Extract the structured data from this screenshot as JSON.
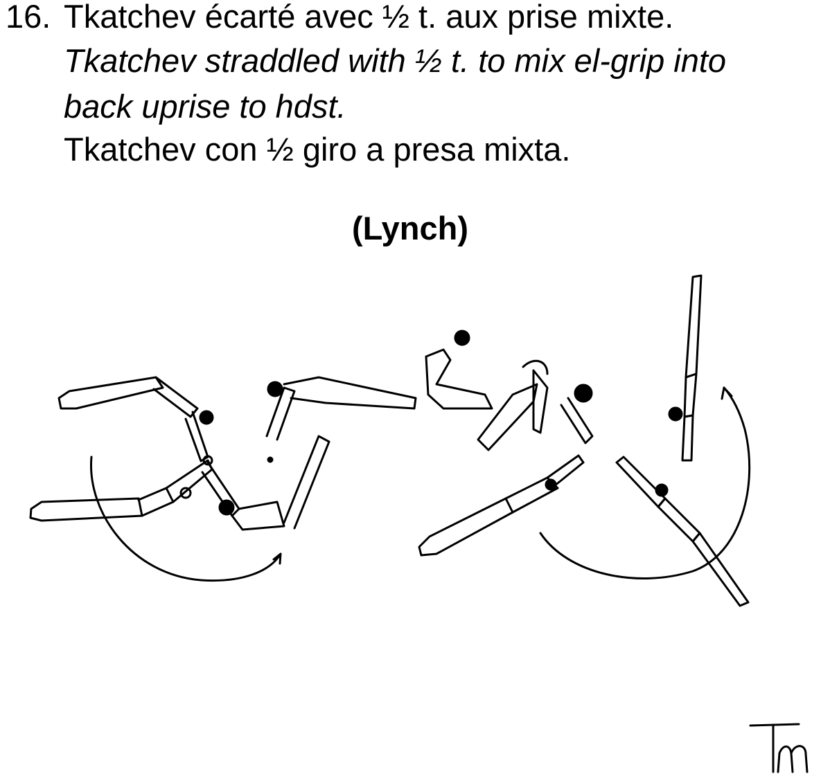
{
  "element": {
    "number": "16.",
    "french": "Tkatchev écarté avec  ½ t. aux prise mixte.",
    "english_line1": "Tkatchev straddled with ½ t. to mix el-grip into",
    "english_line2": "back uprise to hdst.",
    "italian": "Tkatchev con ½ giro a presa mixta.",
    "name": "(Lynch)"
  },
  "signature": {
    "text": "Tm"
  },
  "colors": {
    "ink": "#000000",
    "background": "#ffffff"
  }
}
